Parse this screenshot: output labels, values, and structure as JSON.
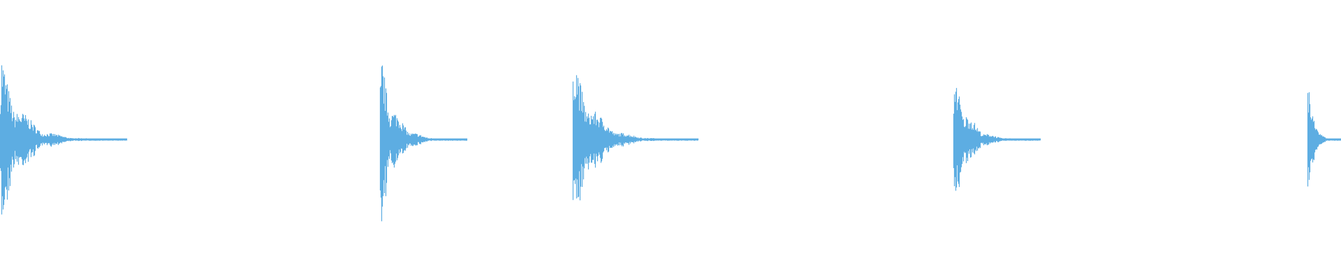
{
  "waveform": {
    "color": "#5dade2",
    "background": "#ffffff",
    "burst_count": 5
  }
}
